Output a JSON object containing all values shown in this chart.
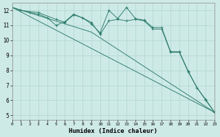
{
  "xlabel": "Humidex (Indice chaleur)",
  "xlim": [
    0,
    23
  ],
  "ylim": [
    4.7,
    12.5
  ],
  "yticks": [
    5,
    6,
    7,
    8,
    9,
    10,
    11,
    12
  ],
  "xticks": [
    0,
    1,
    2,
    3,
    4,
    5,
    6,
    7,
    8,
    9,
    10,
    11,
    12,
    13,
    14,
    15,
    16,
    17,
    18,
    19,
    20,
    21,
    22,
    23
  ],
  "bg_color": "#ceeae6",
  "grid_color": "#aed4cf",
  "line_color": "#2e7d6e",
  "series": [
    {
      "x": [
        0,
        1,
        2,
        3,
        4,
        5,
        6,
        7,
        8,
        9,
        10,
        11,
        12,
        13,
        14,
        15,
        16,
        17,
        18,
        19,
        20,
        21,
        22,
        23
      ],
      "y": [
        12.2,
        12.0,
        11.85,
        11.75,
        11.5,
        11.0,
        11.25,
        11.75,
        11.5,
        11.1,
        10.5,
        12.0,
        11.45,
        12.2,
        11.45,
        11.35,
        10.85,
        10.85,
        9.25,
        9.25,
        7.95,
        6.85,
        6.05,
        5.2
      ],
      "marker": true
    },
    {
      "x": [
        0,
        1,
        3,
        5,
        6,
        7,
        8,
        9,
        10,
        11,
        12,
        13,
        14,
        15,
        16,
        17,
        18,
        19,
        20,
        21,
        22,
        23
      ],
      "y": [
        12.2,
        12.0,
        11.85,
        11.4,
        11.2,
        11.7,
        11.5,
        11.2,
        10.4,
        11.3,
        11.4,
        11.3,
        11.4,
        11.3,
        10.75,
        10.75,
        9.2,
        9.2,
        7.9,
        6.85,
        6.0,
        5.2
      ],
      "marker": true
    },
    {
      "x": [
        0,
        9,
        23
      ],
      "y": [
        12.2,
        10.55,
        5.2
      ],
      "marker": false
    },
    {
      "x": [
        0,
        23
      ],
      "y": [
        12.2,
        5.2
      ],
      "marker": false
    }
  ]
}
